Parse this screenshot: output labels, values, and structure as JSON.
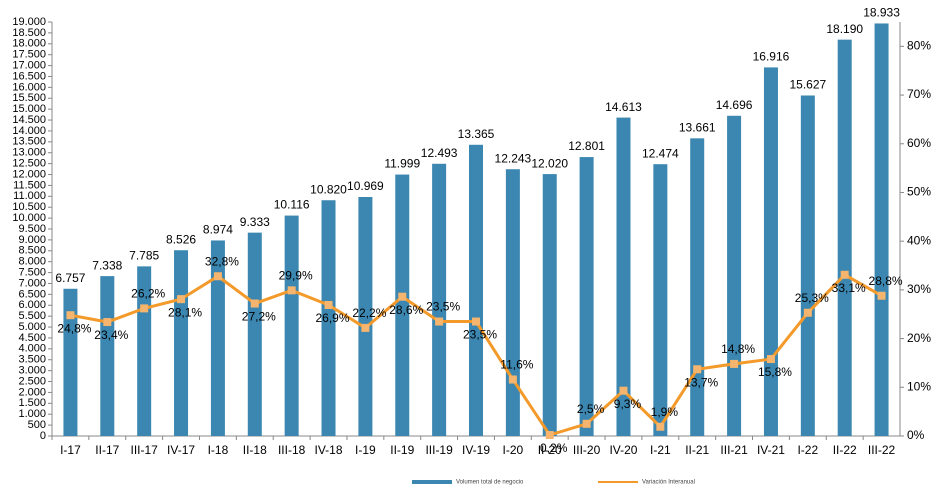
{
  "chart_data": {
    "type": "bar",
    "categories": [
      "I-17",
      "II-17",
      "III-17",
      "IV-17",
      "I-18",
      "II-18",
      "III-18",
      "IV-18",
      "I-19",
      "II-19",
      "III-19",
      "IV-19",
      "I-20",
      "II-20",
      "III-20",
      "IV-20",
      "I-21",
      "II-21",
      "III-21",
      "IV-21",
      "I-22",
      "II-22",
      "III-22"
    ],
    "series": [
      {
        "name": "Volumen total de negocio",
        "type": "bar",
        "color": "#3b87b1",
        "values": [
          6757,
          7338,
          7785,
          8526,
          8974,
          9333,
          10116,
          10820,
          10969,
          11999,
          12493,
          13365,
          12243,
          12020,
          12801,
          14613,
          12474,
          13661,
          14696,
          16916,
          15627,
          18190,
          18933
        ],
        "value_labels": [
          "6.757",
          "7.338",
          "7.785",
          "8.526",
          "8.974",
          "9.333",
          "10.116",
          "10.820",
          "10.969",
          "11.999",
          "12.493",
          "13.365",
          "12.243",
          "12.020",
          "12.801",
          "14.613",
          "12.474",
          "13.661",
          "14.696",
          "16.916",
          "15.627",
          "18.190",
          "18.933"
        ]
      },
      {
        "name": "Variación Interanual",
        "type": "line",
        "axis": "y2",
        "color": "#f39a2b",
        "marker_color": "#f6b56f",
        "values": [
          24.8,
          23.4,
          26.2,
          28.1,
          32.8,
          27.2,
          29.9,
          26.9,
          22.2,
          28.6,
          23.5,
          23.5,
          11.6,
          0.2,
          2.5,
          9.3,
          1.9,
          13.7,
          14.8,
          15.8,
          25.3,
          33.1,
          28.8
        ],
        "value_labels": [
          "24,8%",
          "23,4%",
          "26,2%",
          "28,1%",
          "32,8%",
          "27,2%",
          "29,9%",
          "26,9%",
          "22,2%",
          "28,6%",
          "23,5%",
          "23,5%",
          "11,6%",
          "0,2%",
          "2,5%",
          "9,3%",
          "1,9%",
          "13,7%",
          "14,8%",
          "15,8%",
          "25,3%",
          "33,1%",
          "28,8%"
        ]
      }
    ],
    "ylim": [
      0,
      19000
    ],
    "yticks": [
      0,
      500,
      {
        "value": 1000,
        "label": "1.000"
      },
      {
        "value": 1500,
        "label": "1.500"
      },
      {
        "value": 2000,
        "label": "2.000"
      },
      {
        "value": 2500,
        "label": "2.500"
      },
      {
        "value": 3000,
        "label": "3.000"
      },
      {
        "value": 3500,
        "label": "3.500"
      },
      {
        "value": 4000,
        "label": "4.000"
      },
      {
        "value": 4500,
        "label": "4.500"
      },
      {
        "value": 5000,
        "label": "5.000"
      },
      {
        "value": 5500,
        "label": "5.500"
      },
      {
        "value": 6000,
        "label": "6.000"
      },
      {
        "value": 6500,
        "label": "6.500"
      },
      {
        "value": 7000,
        "label": "7.000"
      },
      {
        "value": 7500,
        "label": "7.500"
      },
      {
        "value": 8000,
        "label": "8.000"
      },
      {
        "value": 8500,
        "label": "8.500"
      },
      {
        "value": 9000,
        "label": "9.000"
      },
      {
        "value": 9500,
        "label": "9.500"
      },
      {
        "value": 10000,
        "label": "10.000"
      },
      {
        "value": 10500,
        "label": "10.500"
      },
      {
        "value": 11000,
        "label": "11.000"
      },
      {
        "value": 11500,
        "label": "11.500"
      },
      {
        "value": 12000,
        "label": "12.000"
      },
      {
        "value": 12500,
        "label": "12.500"
      },
      {
        "value": 13000,
        "label": "13.000"
      },
      {
        "value": 13500,
        "label": "13.500"
      },
      {
        "value": 14000,
        "label": "14.000"
      },
      {
        "value": 14500,
        "label": "14.500"
      },
      {
        "value": 15000,
        "label": "15.000"
      },
      {
        "value": 15500,
        "label": "15.500"
      },
      {
        "value": 16000,
        "label": "16.000"
      },
      {
        "value": 16500,
        "label": "16.500"
      },
      {
        "value": 17000,
        "label": "17.000"
      },
      {
        "value": 17500,
        "label": "17.500"
      },
      {
        "value": 18000,
        "label": "18.000"
      },
      {
        "value": 18500,
        "label": "18.500"
      },
      {
        "value": 19000,
        "label": "19.000"
      }
    ],
    "y2lim": [
      0,
      85
    ],
    "y2ticks": [
      {
        "value": 0,
        "label": "0%"
      },
      {
        "value": 10,
        "label": "10%"
      },
      {
        "value": 20,
        "label": "20%"
      },
      {
        "value": 30,
        "label": "30%"
      },
      {
        "value": 40,
        "label": "40%"
      },
      {
        "value": 50,
        "label": "50%"
      },
      {
        "value": 60,
        "label": "60%"
      },
      {
        "value": 70,
        "label": "70%"
      },
      {
        "value": 80,
        "label": "80%"
      }
    ],
    "legend": "bottom"
  }
}
